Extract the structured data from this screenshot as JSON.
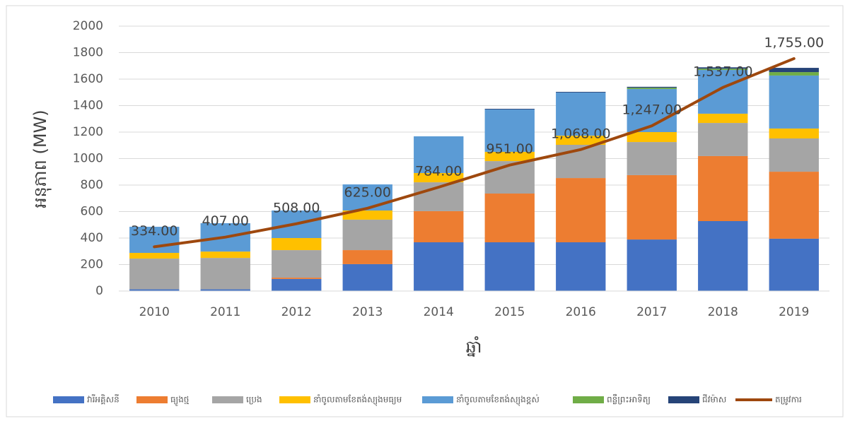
{
  "chart_data": {
    "type": "bar",
    "y_axis_label": "អនុភាព (MW)",
    "x_axis_label": "ឆ្នាំ",
    "categories": [
      "2010",
      "2011",
      "2012",
      "2013",
      "2014",
      "2015",
      "2016",
      "2017",
      "2018",
      "2019"
    ],
    "series": [
      {
        "name": "វារីអគ្គិសនី",
        "color": "#4472c4",
        "values": [
          13,
          13,
          91,
          203,
          368,
          368,
          368,
          389,
          528,
          395
        ]
      },
      {
        "name": "ធ្យូងថ្ម",
        "color": "#ed7d31",
        "values": [
          0,
          0,
          10,
          106,
          235,
          368,
          485,
          486,
          491,
          506
        ]
      },
      {
        "name": "ប្រេង",
        "color": "#a5a5a5",
        "values": [
          232,
          237,
          208,
          230,
          218,
          245,
          251,
          250,
          250,
          251
        ]
      },
      {
        "name": "នាំចូលតាមខែតង់ស្យុងមធ្យម",
        "color": "#ffc000",
        "values": [
          43,
          48,
          91,
          69,
          70,
          70,
          69,
          75,
          70,
          75
        ]
      },
      {
        "name": "នាំចូលតាមខែតង់ស្យុងខ្ពស់",
        "color": "#5b9bd5",
        "values": [
          197,
          214,
          208,
          197,
          277,
          320,
          326,
          325,
          330,
          400
        ]
      },
      {
        "name": "ពន្លឺព្រះអាទិត្យ",
        "color": "#70ad47",
        "values": [
          0,
          0,
          0,
          0,
          0,
          0,
          0,
          10,
          10,
          26
        ]
      },
      {
        "name": "ជីវម៉ាស",
        "color": "#264478",
        "values": [
          0,
          0,
          0,
          0,
          0,
          5,
          5,
          7,
          10,
          32
        ]
      },
      {
        "name": "តម្រូវការ",
        "type": "line",
        "color": "#9e480e",
        "values": [
          334,
          407,
          508,
          625,
          784,
          951,
          1068,
          1247,
          1537,
          1755
        ],
        "value_labels": [
          "334.00",
          "407.00",
          "508.00",
          "625.00",
          "784.00",
          "951.00",
          "1,068.00",
          "1,247.00",
          "1,537.00",
          "1,755.00"
        ]
      }
    ],
    "stacked": true,
    "ylim": [
      0,
      2000
    ],
    "yticks": [
      0,
      200,
      400,
      600,
      800,
      1000,
      1200,
      1400,
      1600,
      1800,
      2000
    ],
    "grid": true,
    "legend": "bottom"
  }
}
